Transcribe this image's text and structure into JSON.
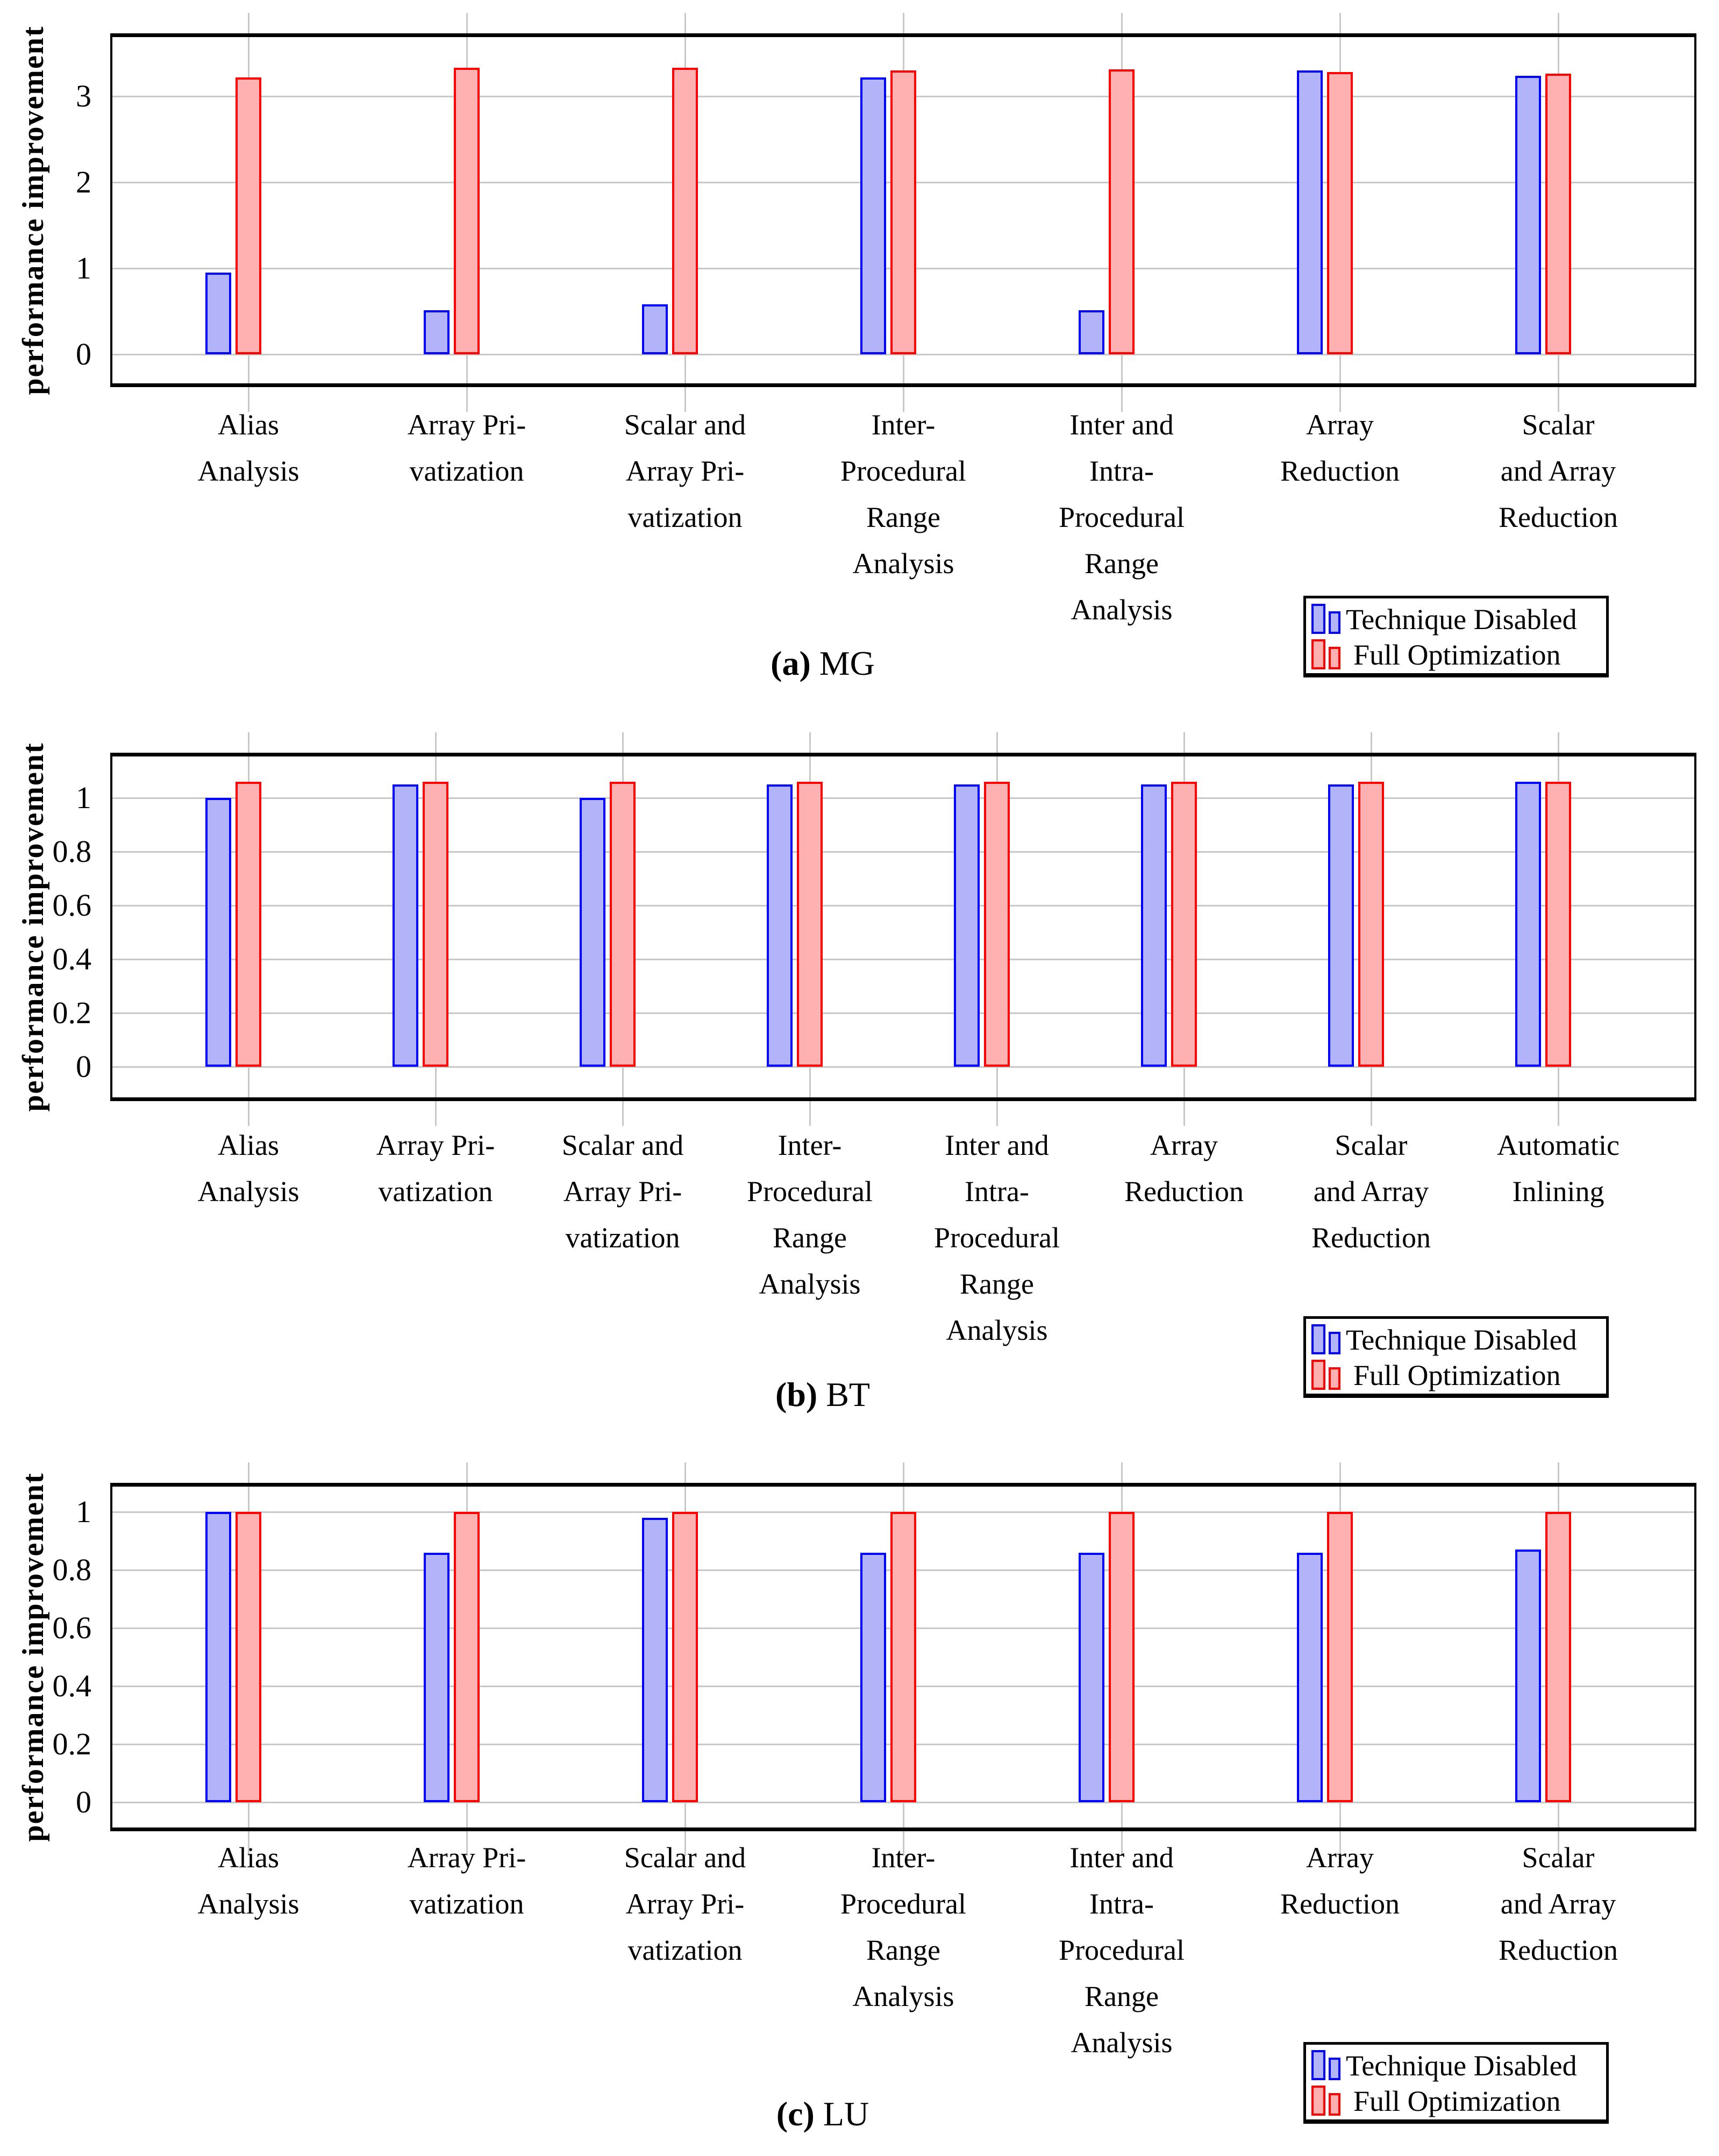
{
  "figure": {
    "description_visible_text_only": true,
    "legend_labels": [
      "Technique Disabled",
      "Full Optimization"
    ],
    "ylabel": "performance improvement"
  },
  "colors": {
    "technique_disabled_fill": "#b3b3fa",
    "technique_disabled_border": "#0000ff",
    "full_optimization_fill": "#ffb0b0",
    "full_optimization_border": "#ff0000",
    "gridline": "#c8c8c8",
    "frame": "#000000",
    "background": "#ffffff"
  },
  "chart_data": [
    {
      "type": "bar",
      "panel": "a",
      "caption_prefix": "(a)",
      "caption_label": "MG",
      "ylabel": "performance improvement",
      "ylim": [
        0,
        3.67
      ],
      "yticks": [
        "0",
        "1",
        "2",
        "3"
      ],
      "grid": true,
      "legend_position": "below right",
      "legend_labels": [
        "Technique Disabled",
        "Full Optimization"
      ],
      "categories": [
        "Alias Analysis",
        "Array Privatization",
        "Scalar and Array Privatization",
        "Inter-Procedural Range Analysis",
        "Inter and Intra-Procedural Range Analysis",
        "Array Reduction",
        "Scalar and Array Reduction"
      ],
      "category_lines": [
        [
          "Alias",
          "Analysis"
        ],
        [
          "Array Pri-",
          "vatization"
        ],
        [
          "Scalar and",
          "Array Pri-",
          "vatization"
        ],
        [
          "Inter-",
          "Procedural",
          "Range",
          "Analysis"
        ],
        [
          "Inter and",
          "Intra-",
          "Procedural",
          "Range",
          "Analysis"
        ],
        [
          "Array",
          "Reduction"
        ],
        [
          "Scalar",
          "and Array",
          "Reduction"
        ]
      ],
      "series": [
        {
          "name": "Technique Disabled",
          "values": [
            0.95,
            0.51,
            0.58,
            3.22,
            0.51,
            3.3,
            3.24
          ]
        },
        {
          "name": "Full Optimization",
          "values": [
            3.22,
            3.33,
            3.33,
            3.3,
            3.31,
            3.28,
            3.26
          ]
        }
      ]
    },
    {
      "type": "bar",
      "panel": "b",
      "caption_prefix": "(b)",
      "caption_label": "BT",
      "ylabel": "performance improvement",
      "ylim": [
        0,
        1.15
      ],
      "yticks": [
        "0",
        "0.2",
        "0.4",
        "0.6",
        "0.8",
        "1"
      ],
      "grid": true,
      "legend_position": "below right",
      "legend_labels": [
        "Technique Disabled",
        "Full Optimization"
      ],
      "categories": [
        "Alias Analysis",
        "Array Privatization",
        "Scalar and Array Privatization",
        "Inter-Procedural Range Analysis",
        "Inter and Intra-Procedural Range Analysis",
        "Array Reduction",
        "Scalar and Array Reduction",
        "Automatic Inlining"
      ],
      "category_lines": [
        [
          "Alias",
          "Analysis"
        ],
        [
          "Array Pri-",
          "vatization"
        ],
        [
          "Scalar and",
          "Array Pri-",
          "vatization"
        ],
        [
          "Inter-",
          "Procedural",
          "Range",
          "Analysis"
        ],
        [
          "Inter and",
          "Intra-",
          "Procedural",
          "Range",
          "Analysis"
        ],
        [
          "Array",
          "Reduction"
        ],
        [
          "Scalar",
          "and Array",
          "Reduction"
        ],
        [
          "Automatic",
          "Inlining"
        ]
      ],
      "series": [
        {
          "name": "Technique Disabled",
          "values": [
            1.0,
            1.05,
            1.0,
            1.05,
            1.05,
            1.05,
            1.05,
            1.06
          ]
        },
        {
          "name": "Full Optimization",
          "values": [
            1.06,
            1.06,
            1.06,
            1.06,
            1.06,
            1.06,
            1.06,
            1.06
          ]
        }
      ]
    },
    {
      "type": "bar",
      "panel": "c",
      "caption_prefix": "(c)",
      "caption_label": "LU",
      "ylabel": "performance improvement",
      "ylim": [
        0,
        1.1
      ],
      "yticks": [
        "0",
        "0.2",
        "0.4",
        "0.6",
        "0.8",
        "1"
      ],
      "grid": true,
      "legend_position": "below right",
      "legend_labels": [
        "Technique Disabled",
        "Full Optimization"
      ],
      "categories": [
        "Alias Analysis",
        "Array Privatization",
        "Scalar and Array Privatization",
        "Inter-Procedural Range Analysis",
        "Inter and Intra-Procedural Range Analysis",
        "Array Reduction",
        "Scalar and Array Reduction"
      ],
      "category_lines": [
        [
          "Alias",
          "Analysis"
        ],
        [
          "Array Pri-",
          "vatization"
        ],
        [
          "Scalar and",
          "Array Pri-",
          "vatization"
        ],
        [
          "Inter-",
          "Procedural",
          "Range",
          "Analysis"
        ],
        [
          "Inter and",
          "Intra-",
          "Procedural",
          "Range",
          "Analysis"
        ],
        [
          "Array",
          "Reduction"
        ],
        [
          "Scalar",
          "and Array",
          "Reduction"
        ]
      ],
      "series": [
        {
          "name": "Technique Disabled",
          "values": [
            1.0,
            0.86,
            0.98,
            0.86,
            0.86,
            0.86,
            0.87
          ]
        },
        {
          "name": "Full Optimization",
          "values": [
            1.0,
            1.0,
            1.0,
            1.0,
            1.0,
            1.0,
            1.0
          ]
        }
      ]
    }
  ]
}
